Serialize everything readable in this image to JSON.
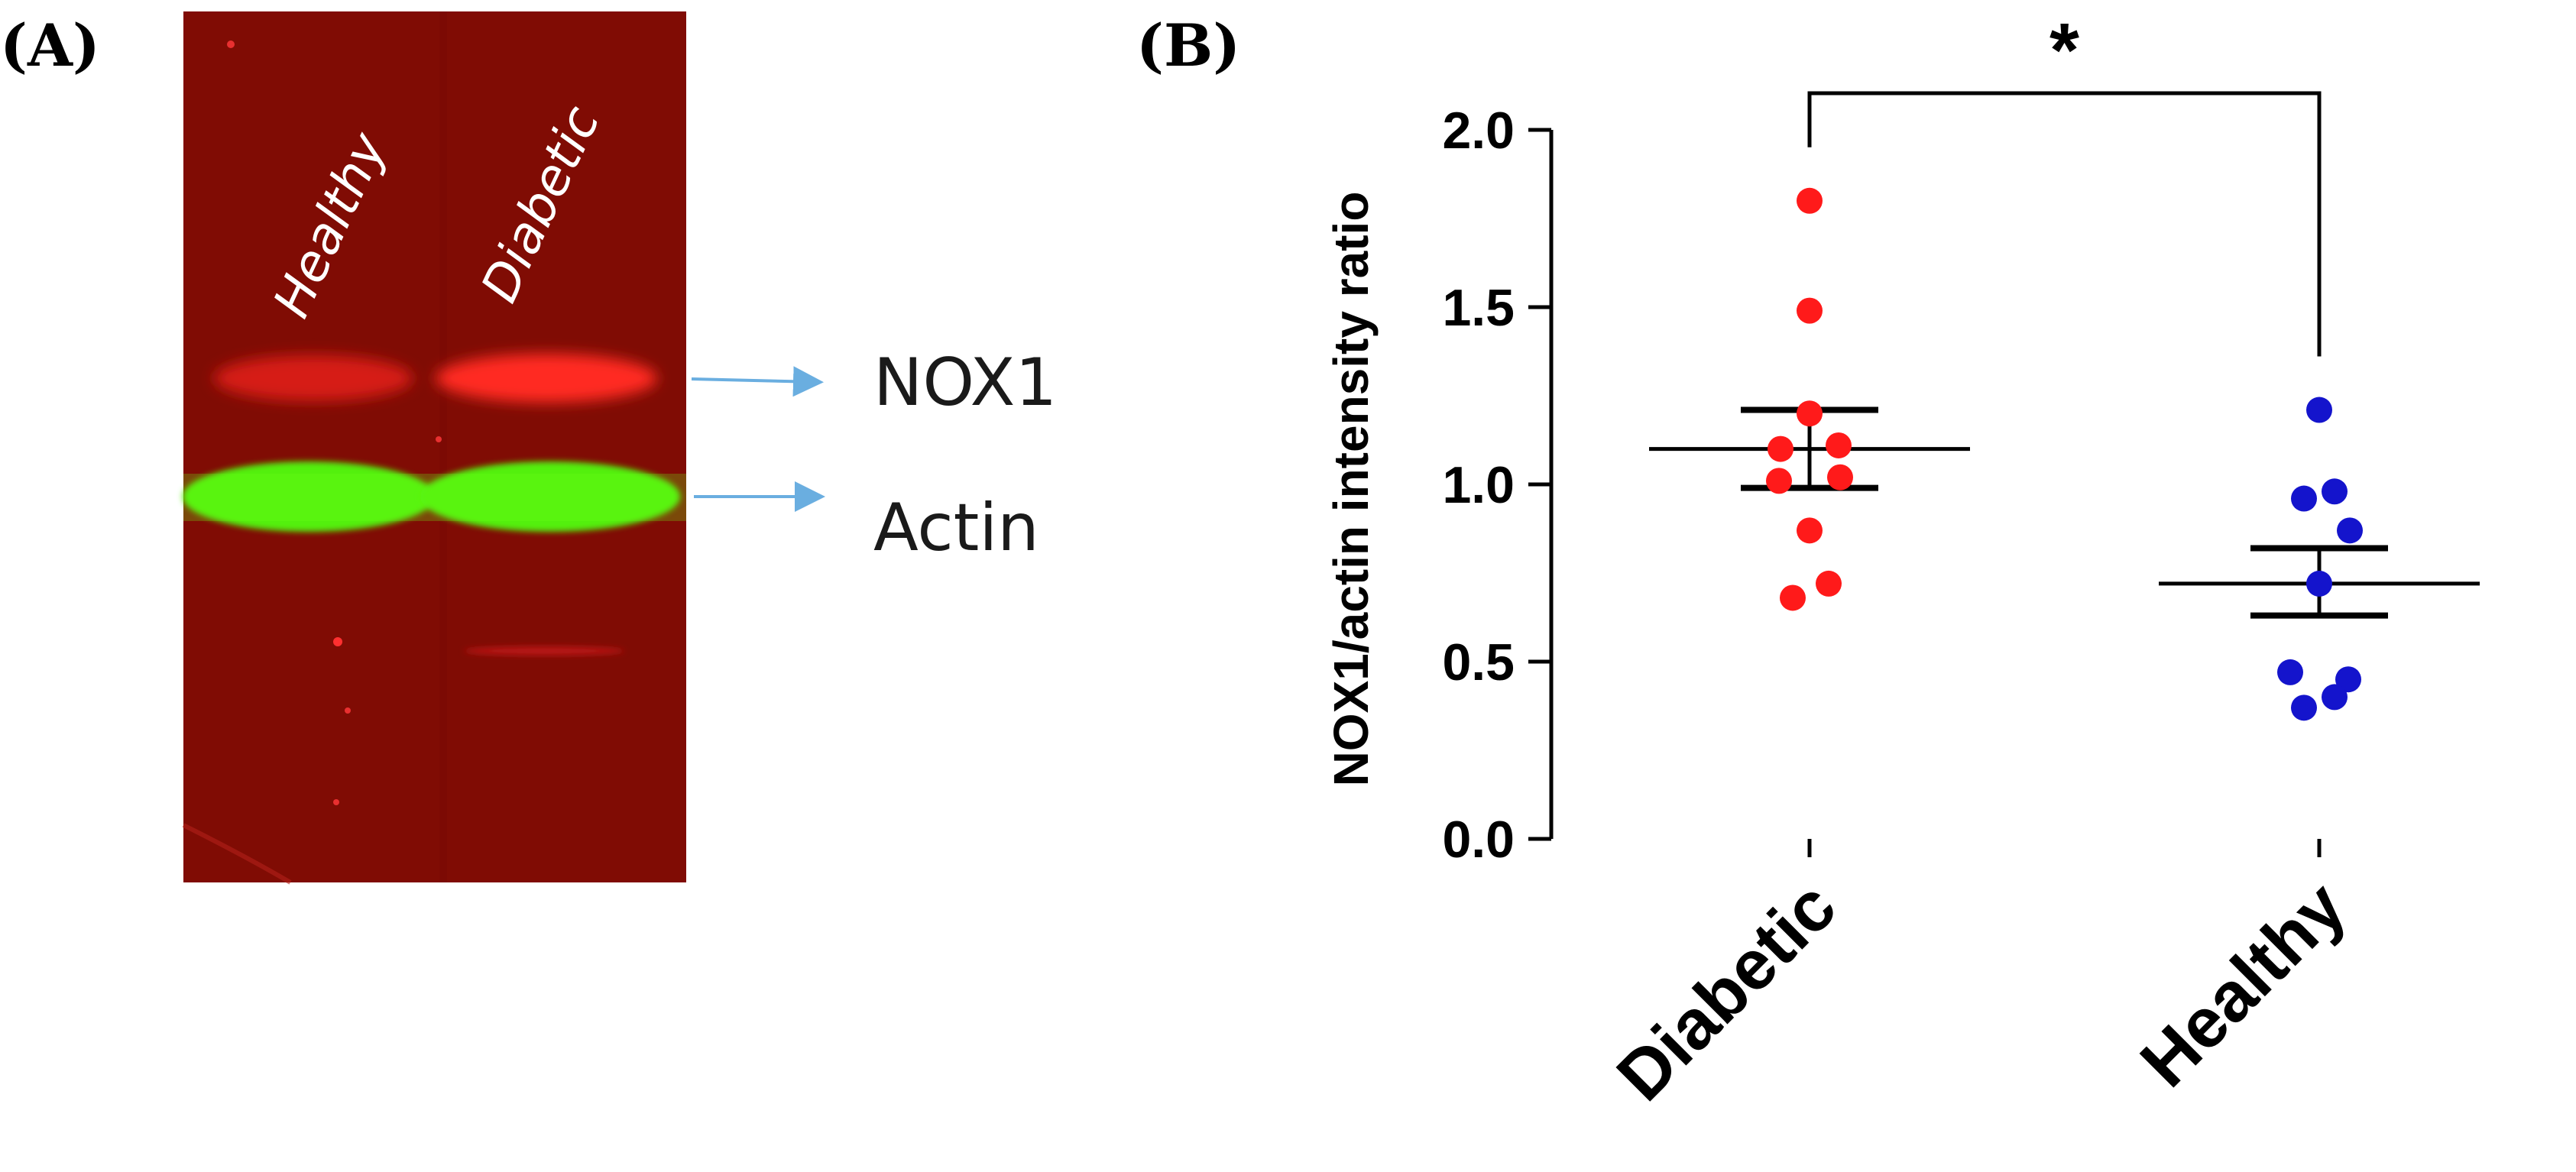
{
  "panel_a": {
    "label": "(A)",
    "lanes": [
      "Healthy",
      "Diabetic"
    ],
    "bands": [
      "NOX1",
      "Actin"
    ],
    "colors": {
      "background": "#8a0f05",
      "nox1_band": "#e82020",
      "actin_band": "#5cff10",
      "arrow": "#6aaee0"
    }
  },
  "panel_b": {
    "label": "(B)",
    "significance": "*"
  },
  "chart_data": {
    "type": "scatter",
    "title": "",
    "xlabel": "",
    "ylabel": "NOX1/actin intensity ratio",
    "categories": [
      "Diabetic",
      "Healthy"
    ],
    "ylim": [
      0,
      2.0
    ],
    "yticks": [
      "0.0",
      "0.5",
      "1.0",
      "1.5",
      "2.0"
    ],
    "grid": false,
    "series": [
      {
        "category": "Diabetic",
        "color": "#ff1a1a",
        "values": [
          1.8,
          1.49,
          1.2,
          1.1,
          1.11,
          1.01,
          1.02,
          0.87,
          0.72,
          0.68
        ],
        "mean": 1.1,
        "sem_upper": 1.21,
        "sem_lower": 0.99
      },
      {
        "category": "Healthy",
        "color": "#1414cc",
        "values": [
          1.21,
          0.96,
          0.98,
          0.87,
          0.72,
          0.47,
          0.45,
          0.37,
          0.4
        ],
        "mean": 0.72,
        "sem_upper": 0.82,
        "sem_lower": 0.63
      }
    ],
    "annotations": [
      {
        "text": "*",
        "between": [
          "Diabetic",
          "Healthy"
        ]
      }
    ]
  }
}
